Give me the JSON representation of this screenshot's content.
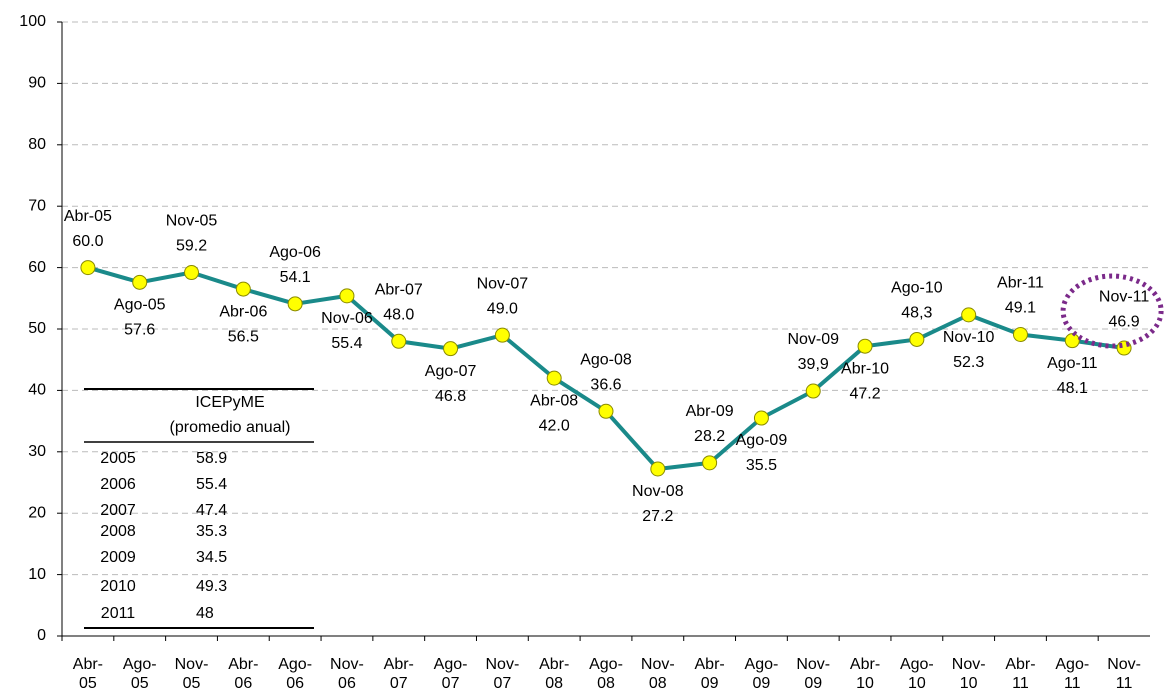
{
  "chart_data": {
    "type": "line",
    "categories": [
      "Abr-05",
      "Ago-05",
      "Nov-05",
      "Abr-06",
      "Ago-06",
      "Nov-06",
      "Abr-07",
      "Ago-07",
      "Nov-07",
      "Abr-08",
      "Ago-08",
      "Nov-08",
      "Abr-09",
      "Ago-09",
      "Nov-09",
      "Abr-10",
      "Ago-10",
      "Nov-10",
      "Abr-11",
      "Ago-11",
      "Nov-11"
    ],
    "values": [
      60.0,
      57.6,
      59.2,
      56.5,
      54.1,
      55.4,
      48.0,
      46.8,
      49.0,
      42.0,
      36.6,
      27.2,
      28.2,
      35.5,
      39.9,
      47.2,
      48.3,
      52.3,
      49.1,
      48.1,
      46.9
    ],
    "value_labels": [
      "60.0",
      "57.6",
      "59.2",
      "56.5",
      "54.1",
      "55.4",
      "48.0",
      "46.8",
      "49.0",
      "42.0",
      "36.6",
      "27.2",
      "28.2",
      "35.5",
      "39,9",
      "47.2",
      "48,3",
      "52.3",
      "49.1",
      "48.1",
      "46.9"
    ],
    "color": "#1a8a8a",
    "marker_color": "#ffff00",
    "ylim": [
      0,
      100
    ],
    "yticks": [
      0,
      10,
      20,
      30,
      40,
      50,
      60,
      70,
      80,
      90,
      100
    ],
    "grid": true,
    "table": {
      "header": [
        "ICEPyME",
        "(promedio anual)"
      ],
      "rows": [
        [
          2005,
          58.9
        ],
        [
          2006,
          55.4
        ],
        [
          2007,
          47.4
        ],
        [
          2008,
          35.3
        ],
        [
          2009,
          34.5
        ],
        [
          2010,
          49.3
        ],
        [
          2011,
          48.0
        ]
      ],
      "row_labels": [
        [
          "2005",
          "58.9"
        ],
        [
          "2006",
          "55.4"
        ],
        [
          "2007",
          "47.4"
        ],
        [
          "2008",
          "35.3"
        ],
        [
          "2009",
          "34.5"
        ],
        [
          "2010",
          "49.3"
        ],
        [
          "2011",
          "48.0"
        ]
      ]
    }
  }
}
